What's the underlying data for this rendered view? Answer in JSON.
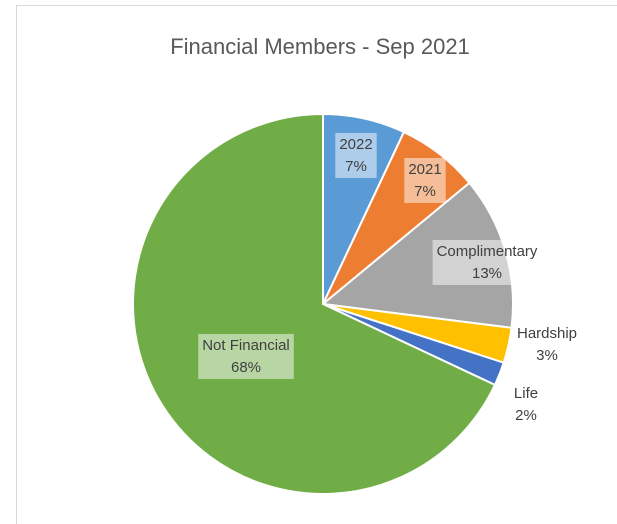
{
  "chart_data": {
    "type": "pie",
    "title": "Financial Members - Sep 2021",
    "categories": [
      "2022",
      "2021",
      "Complimentary",
      "Hardship",
      "Life",
      "Not Financial"
    ],
    "values": [
      7,
      7,
      13,
      3,
      2,
      68
    ],
    "value_labels": [
      "7%",
      "7%",
      "13%",
      "3%",
      "2%",
      "68%"
    ],
    "colors": [
      "#5b9bd5",
      "#ed7d31",
      "#a5a5a5",
      "#ffc000",
      "#4472c4",
      "#70ad47"
    ]
  }
}
